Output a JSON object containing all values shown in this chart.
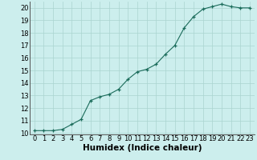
{
  "x": [
    0,
    1,
    2,
    3,
    4,
    5,
    6,
    7,
    8,
    9,
    10,
    11,
    12,
    13,
    14,
    15,
    16,
    17,
    18,
    19,
    20,
    21,
    22,
    23
  ],
  "y": [
    10.2,
    10.2,
    10.2,
    10.3,
    10.7,
    11.1,
    12.6,
    12.9,
    13.1,
    13.5,
    14.3,
    14.9,
    15.1,
    15.5,
    16.3,
    17.0,
    18.4,
    19.3,
    19.9,
    20.1,
    20.3,
    20.1,
    20.0,
    20.0
  ],
  "xlabel": "Humidex (Indice chaleur)",
  "xlim": [
    -0.5,
    23.5
  ],
  "ylim": [
    9.9,
    20.5
  ],
  "yticks": [
    10,
    11,
    12,
    13,
    14,
    15,
    16,
    17,
    18,
    19,
    20
  ],
  "xticks": [
    0,
    1,
    2,
    3,
    4,
    5,
    6,
    7,
    8,
    9,
    10,
    11,
    12,
    13,
    14,
    15,
    16,
    17,
    18,
    19,
    20,
    21,
    22,
    23
  ],
  "line_color": "#1a6b5a",
  "marker_color": "#1a6b5a",
  "bg_color": "#cceeed",
  "grid_color": "#aad4d0",
  "xlabel_fontsize": 7.5,
  "tick_fontsize": 6.0
}
